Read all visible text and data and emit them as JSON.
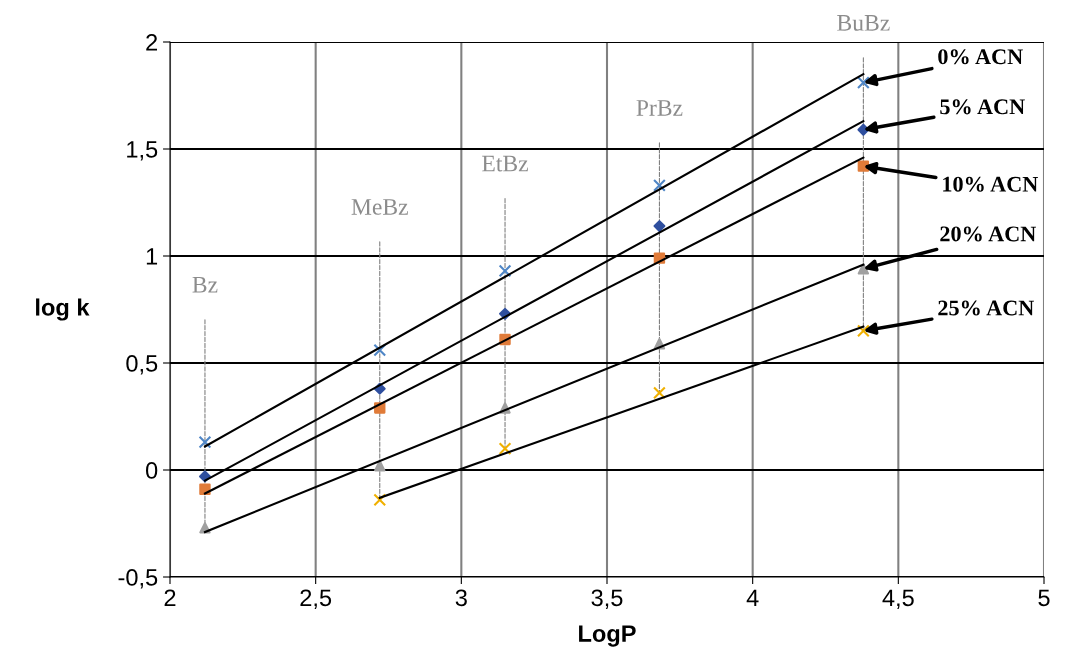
{
  "chart_data": {
    "type": "scatter",
    "xlabel": "LogP",
    "ylabel": "log k",
    "xlim": [
      2,
      5
    ],
    "xticks": [
      2,
      {
        "value": 2.5,
        "label": "2,5"
      },
      3,
      {
        "value": 3.5,
        "label": "3,5"
      },
      4,
      {
        "value": 4.5,
        "label": "4,5"
      },
      5
    ],
    "ylim": [
      -0.5,
      2
    ],
    "yticks": [
      {
        "value": -0.5,
        "label": "-0,5"
      },
      0,
      {
        "value": 0.5,
        "label": "0,5"
      },
      1,
      {
        "value": 1.5,
        "label": "1,5"
      },
      2
    ],
    "grid": true,
    "series": [
      {
        "marker": "cross",
        "color": "#4f86c6",
        "x": [
          2.12,
          2.72,
          3.15,
          3.68,
          4.38
        ],
        "values": [
          0.13,
          0.56,
          0.93,
          1.33,
          1.81
        ]
      },
      {
        "marker": "diamond",
        "color": "#2f4f9f",
        "x": [
          2.12,
          2.72,
          3.15,
          3.68,
          4.38
        ],
        "values": [
          -0.03,
          0.38,
          0.73,
          1.14,
          1.59
        ]
      },
      {
        "marker": "square",
        "color": "#e07b39",
        "x": [
          2.12,
          2.72,
          3.15,
          3.68,
          4.38
        ],
        "values": [
          -0.09,
          0.29,
          0.61,
          0.99,
          1.42
        ]
      },
      {
        "marker": "triangle",
        "color": "#a0a0a0",
        "x": [
          2.12,
          2.72,
          3.15,
          3.68,
          4.38
        ],
        "values": [
          -0.27,
          0.02,
          0.29,
          0.59,
          0.94
        ]
      },
      {
        "marker": "cross",
        "color": "#f0b000",
        "x": [
          2.72,
          3.15,
          3.68,
          4.38
        ],
        "values": [
          -0.14,
          0.1,
          0.36,
          0.65
        ]
      },
      {
        "type": "line",
        "marker": "none",
        "color": "#000000",
        "x": [
          2.12,
          4.38
        ],
        "values": [
          0.11,
          1.85
        ]
      },
      {
        "type": "line",
        "marker": "none",
        "color": "#000000",
        "x": [
          2.12,
          4.38
        ],
        "values": [
          -0.05,
          1.63
        ]
      },
      {
        "type": "line",
        "marker": "none",
        "color": "#000000",
        "x": [
          2.12,
          4.38
        ],
        "values": [
          -0.11,
          1.46
        ]
      },
      {
        "type": "line",
        "marker": "none",
        "color": "#000000",
        "x": [
          2.12,
          4.38
        ],
        "values": [
          -0.29,
          0.96
        ]
      },
      {
        "type": "line",
        "marker": "none",
        "color": "#000000",
        "x": [
          2.72,
          4.38
        ],
        "values": [
          -0.13,
          0.67
        ]
      }
    ],
    "annotations": [
      {
        "text": "0% ACN",
        "x": 4.38,
        "y": 1.81
      },
      {
        "text": "5% ACN",
        "x": 4.38,
        "y": 1.59
      },
      {
        "text": "10% ACN",
        "x": 4.38,
        "y": 1.42
      },
      {
        "text": "20% ACN",
        "x": 4.38,
        "y": 0.94
      },
      {
        "text": "25% ACN",
        "x": 4.38,
        "y": 0.65
      },
      {
        "text": "Bz",
        "x": 2.12,
        "y": -0.27
      },
      {
        "text": "MeBz",
        "x": 2.72,
        "y": -0.14
      },
      {
        "text": "EtBz",
        "x": 3.15,
        "y": 0.1
      },
      {
        "text": "PrBz",
        "x": 3.68,
        "y": 0.36
      },
      {
        "text": "BuBz",
        "x": 4.38,
        "y": 0.65
      }
    ]
  }
}
